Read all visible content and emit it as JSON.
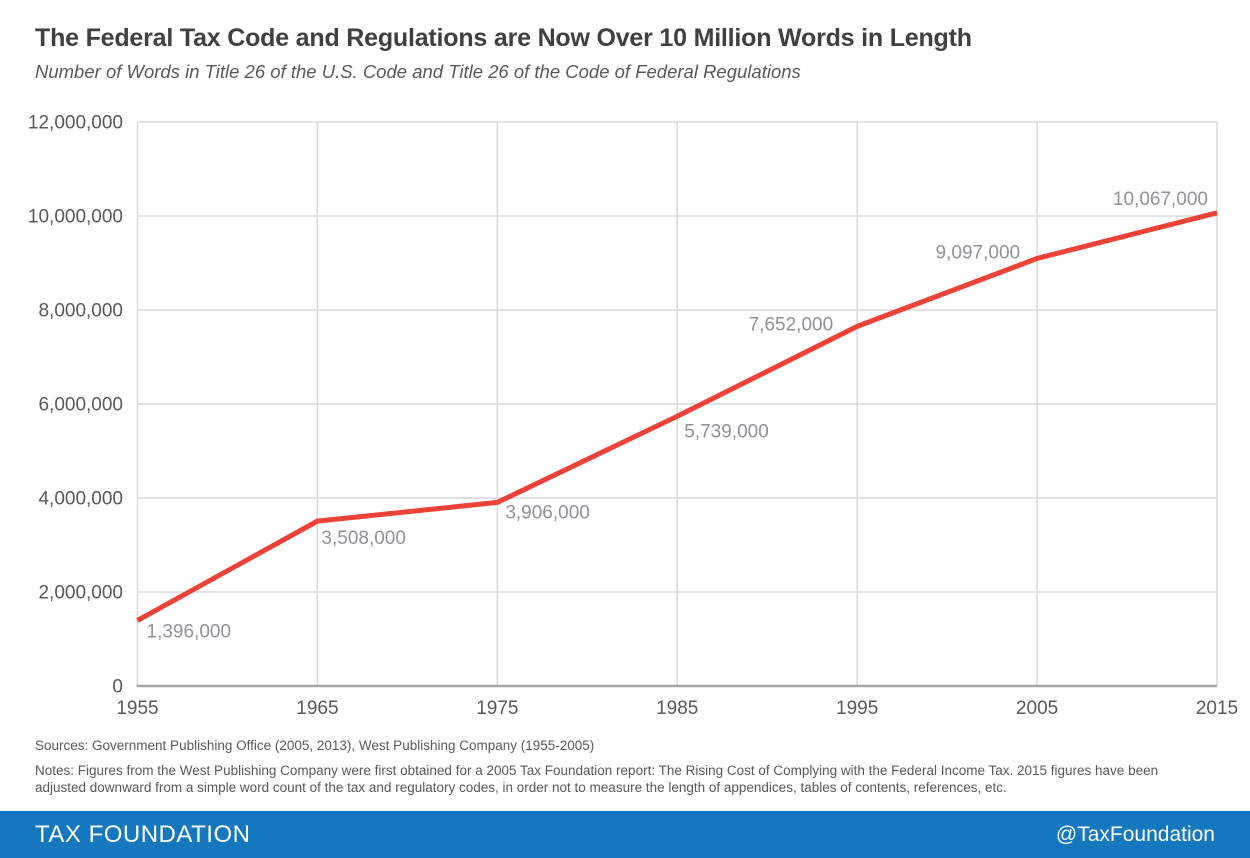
{
  "header": {
    "title": "The Federal Tax Code and Regulations are Now Over 10 Million Words in Length",
    "subtitle": "Number of Words in Title 26 of the U.S. Code and Title 26 of the Code of Federal Regulations"
  },
  "chart_data": {
    "type": "line",
    "title": "The Federal Tax Code and Regulations are Now Over 10 Million Words in Length",
    "x": [
      1955,
      1965,
      1975,
      1985,
      1995,
      2005,
      2015
    ],
    "series": [
      {
        "name": "Number of Words in Title 26 of the U.S. Code and Title 26 of the Code of Federal Regulations",
        "values": [
          1396000,
          3508000,
          3906000,
          5739000,
          7652000,
          9097000,
          10067000
        ]
      }
    ],
    "point_labels": [
      "1,396,000",
      "3,508,000",
      "3,906,000",
      "5,739,000",
      "7,652,000",
      "9,097,000",
      "10,067,000"
    ],
    "x_tick_labels": [
      "1955",
      "1965",
      "1975",
      "1985",
      "1995",
      "2005",
      "2015"
    ],
    "y_tick_labels": [
      "0",
      "2,000,000",
      "4,000,000",
      "6,000,000",
      "8,000,000",
      "10,000,000",
      "12,000,000"
    ],
    "y_tick_values": [
      0,
      2000000,
      4000000,
      6000000,
      8000000,
      10000000,
      12000000
    ],
    "ylim": [
      0,
      12000000
    ],
    "xlabel": "",
    "ylabel": "",
    "grid": true,
    "legend_position": "none",
    "line_color": "#ec4237",
    "grid_color": "#d9d9d9",
    "axis_color": "#a6a6a6",
    "tick_label_color": "#595959",
    "data_label_color": "#8f9296"
  },
  "footnotes": {
    "sources": "Sources: Government Publishing Office (2005, 2013), West Publishing Company (1955-2005)",
    "notes": "Notes: Figures from the West Publishing Company were first obtained for a 2005 Tax Foundation report: The Rising Cost of Complying with the Federal Income Tax. 2015 figures have been adjusted downward from a simple word count of the tax and regulatory codes, in order not to measure the length of appendices, tables of contents, references, etc."
  },
  "footer": {
    "brand": "TAX FOUNDATION",
    "handle": "@TaxFoundation",
    "bar_color": "#1578be",
    "text_color": "#ffffff"
  }
}
